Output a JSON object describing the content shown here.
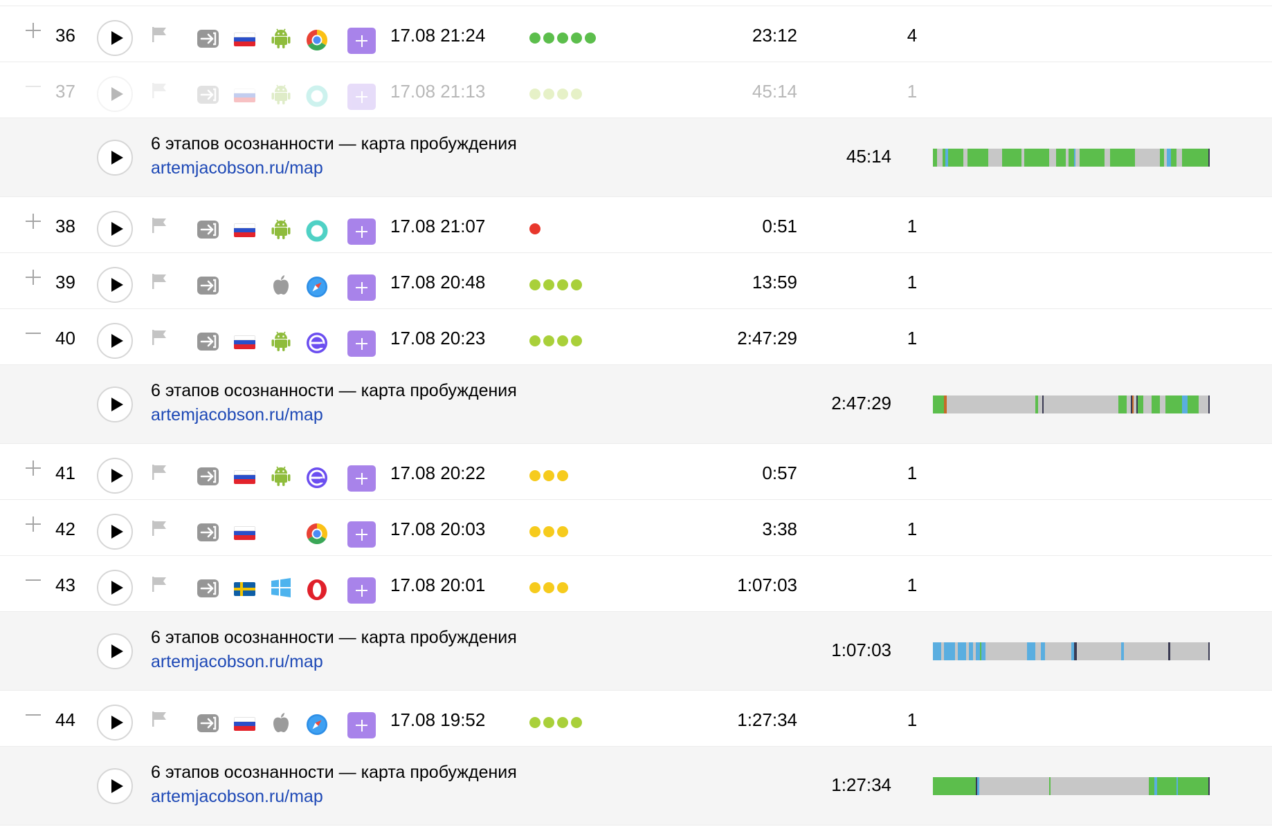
{
  "colors": {
    "green": "#5cbe4c",
    "red": "#e8372c",
    "lime": "#a9d03a",
    "yellow": "#f6cb1d",
    "gray": "#c7c7c7",
    "blue": "#5aaee0",
    "dark": "#3a3a52",
    "orange": "#c76a28",
    "link": "#1e49b6",
    "add_button": "#a883ea"
  },
  "detail_title": "6 этапов осознанности — карта пробуждения",
  "detail_url": "artemjacobson.ru/map",
  "rows": [
    {
      "num": "36",
      "expanded": false,
      "faded": false,
      "country": "ru",
      "os": "android",
      "browser": "chrome",
      "time": "17.08 21:24",
      "dots": {
        "count": 5,
        "color": "green"
      },
      "duration": "23:12",
      "count": "4",
      "detail": null
    },
    {
      "num": "37",
      "expanded": true,
      "faded": true,
      "country": "ru",
      "os": "android",
      "browser": "cyan-ring",
      "time": "17.08 21:13",
      "dots": {
        "count": 4,
        "color": "lime"
      },
      "duration": "45:14",
      "count": "1",
      "detail": {
        "duration": "45:14",
        "bar": [
          [
            "green",
            0.0,
            0.015
          ],
          [
            "gray",
            0.015,
            0.035
          ],
          [
            "green",
            0.035,
            0.045
          ],
          [
            "blue",
            0.045,
            0.055
          ],
          [
            "green",
            0.055,
            0.11
          ],
          [
            "gray",
            0.11,
            0.125
          ],
          [
            "green",
            0.125,
            0.2
          ],
          [
            "gray",
            0.2,
            0.25
          ],
          [
            "green",
            0.25,
            0.32
          ],
          [
            "gray",
            0.32,
            0.33
          ],
          [
            "green",
            0.33,
            0.42
          ],
          [
            "gray",
            0.42,
            0.445
          ],
          [
            "green",
            0.445,
            0.48
          ],
          [
            "gray",
            0.48,
            0.49
          ],
          [
            "green",
            0.49,
            0.51
          ],
          [
            "blue",
            0.51,
            0.515
          ],
          [
            "gray",
            0.515,
            0.53
          ],
          [
            "green",
            0.53,
            0.62
          ],
          [
            "gray",
            0.62,
            0.64
          ],
          [
            "green",
            0.64,
            0.73
          ],
          [
            "gray",
            0.73,
            0.82
          ],
          [
            "green",
            0.82,
            0.835
          ],
          [
            "gray",
            0.835,
            0.845
          ],
          [
            "blue",
            0.845,
            0.86
          ],
          [
            "green",
            0.86,
            0.88
          ],
          [
            "gray",
            0.88,
            0.9
          ],
          [
            "green",
            0.9,
            0.995
          ],
          [
            "dark",
            0.995,
            1.0
          ]
        ]
      }
    },
    {
      "num": "38",
      "expanded": false,
      "faded": false,
      "country": "ru",
      "os": "android",
      "browser": "cyan-ring",
      "time": "17.08 21:07",
      "dots": {
        "count": 1,
        "color": "red"
      },
      "duration": "0:51",
      "count": "1",
      "detail": null
    },
    {
      "num": "39",
      "expanded": false,
      "faded": false,
      "country": null,
      "os": "apple",
      "browser": "safari",
      "time": "17.08 20:48",
      "dots": {
        "count": 4,
        "color": "lime"
      },
      "duration": "13:59",
      "count": "1",
      "detail": null
    },
    {
      "num": "40",
      "expanded": true,
      "faded": false,
      "country": "ru",
      "os": "android",
      "browser": "edge",
      "time": "17.08 20:23",
      "dots": {
        "count": 4,
        "color": "lime"
      },
      "duration": "2:47:29",
      "count": "1",
      "detail": {
        "duration": "2:47:29",
        "bar": [
          [
            "green",
            0.0,
            0.04
          ],
          [
            "orange",
            0.04,
            0.05
          ],
          [
            "gray",
            0.05,
            0.37
          ],
          [
            "green",
            0.37,
            0.38
          ],
          [
            "gray",
            0.38,
            0.395
          ],
          [
            "dark",
            0.395,
            0.4
          ],
          [
            "gray",
            0.4,
            0.67
          ],
          [
            "green",
            0.67,
            0.7
          ],
          [
            "gray",
            0.7,
            0.715
          ],
          [
            "dark",
            0.715,
            0.72
          ],
          [
            "orange",
            0.72,
            0.725
          ],
          [
            "gray",
            0.725,
            0.735
          ],
          [
            "dark",
            0.735,
            0.74
          ],
          [
            "green",
            0.74,
            0.76
          ],
          [
            "gray",
            0.76,
            0.79
          ],
          [
            "green",
            0.79,
            0.82
          ],
          [
            "gray",
            0.82,
            0.84
          ],
          [
            "green",
            0.84,
            0.9
          ],
          [
            "blue",
            0.9,
            0.92
          ],
          [
            "green",
            0.92,
            0.96
          ],
          [
            "gray",
            0.96,
            0.995
          ],
          [
            "dark",
            0.995,
            1.0
          ]
        ]
      }
    },
    {
      "num": "41",
      "expanded": false,
      "faded": false,
      "country": "ru",
      "os": "android",
      "browser": "edge",
      "time": "17.08 20:22",
      "dots": {
        "count": 3,
        "color": "yellow"
      },
      "duration": "0:57",
      "count": "1",
      "detail": null
    },
    {
      "num": "42",
      "expanded": false,
      "faded": false,
      "country": "ru",
      "os": null,
      "browser": "chrome",
      "time": "17.08 20:03",
      "dots": {
        "count": 3,
        "color": "yellow"
      },
      "duration": "3:38",
      "count": "1",
      "detail": null
    },
    {
      "num": "43",
      "expanded": true,
      "faded": false,
      "country": "se",
      "os": "windows",
      "browser": "opera",
      "time": "17.08 20:01",
      "dots": {
        "count": 3,
        "color": "yellow"
      },
      "duration": "1:07:03",
      "count": "1",
      "detail": {
        "duration": "1:07:03",
        "bar": [
          [
            "blue",
            0.0,
            0.03
          ],
          [
            "gray",
            0.03,
            0.04
          ],
          [
            "blue",
            0.04,
            0.08
          ],
          [
            "gray",
            0.08,
            0.09
          ],
          [
            "blue",
            0.09,
            0.12
          ],
          [
            "gray",
            0.12,
            0.13
          ],
          [
            "blue",
            0.13,
            0.145
          ],
          [
            "gray",
            0.145,
            0.155
          ],
          [
            "blue",
            0.155,
            0.17
          ],
          [
            "green",
            0.17,
            0.175
          ],
          [
            "blue",
            0.175,
            0.19
          ],
          [
            "gray",
            0.19,
            0.34
          ],
          [
            "blue",
            0.34,
            0.37
          ],
          [
            "gray",
            0.37,
            0.39
          ],
          [
            "blue",
            0.39,
            0.405
          ],
          [
            "gray",
            0.405,
            0.5
          ],
          [
            "blue",
            0.5,
            0.51
          ],
          [
            "dark",
            0.51,
            0.52
          ],
          [
            "gray",
            0.52,
            0.68
          ],
          [
            "blue",
            0.68,
            0.69
          ],
          [
            "gray",
            0.69,
            0.85
          ],
          [
            "dark",
            0.85,
            0.857
          ],
          [
            "gray",
            0.857,
            0.995
          ],
          [
            "dark",
            0.995,
            1.0
          ]
        ]
      }
    },
    {
      "num": "44",
      "expanded": true,
      "faded": false,
      "country": "ru",
      "os": "apple",
      "browser": "safari",
      "time": "17.08 19:52",
      "dots": {
        "count": 4,
        "color": "lime"
      },
      "duration": "1:27:34",
      "count": "1",
      "detail": {
        "duration": "1:27:34",
        "bar": [
          [
            "green",
            0.0,
            0.155
          ],
          [
            "dark",
            0.155,
            0.16
          ],
          [
            "blue",
            0.16,
            0.167
          ],
          [
            "gray",
            0.167,
            0.42
          ],
          [
            "green",
            0.42,
            0.425
          ],
          [
            "gray",
            0.425,
            0.78
          ],
          [
            "green",
            0.78,
            0.8
          ],
          [
            "blue",
            0.8,
            0.81
          ],
          [
            "green",
            0.81,
            0.88
          ],
          [
            "blue",
            0.88,
            0.885
          ],
          [
            "green",
            0.885,
            0.995
          ],
          [
            "dark",
            0.995,
            1.0
          ]
        ]
      }
    }
  ]
}
